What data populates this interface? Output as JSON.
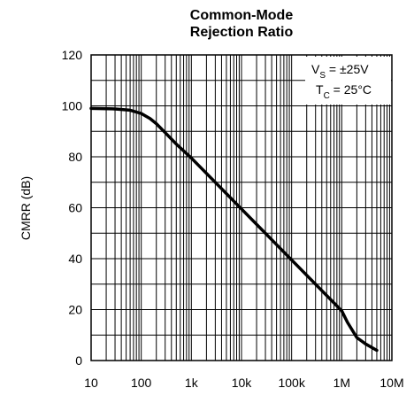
{
  "chart_data": {
    "type": "line",
    "title": [
      "Common-Mode",
      "Rejection Ratio"
    ],
    "y_label": "CMRR (dB)",
    "x": [
      10,
      30,
      60,
      100,
      150,
      200,
      300,
      500,
      1000,
      10000,
      100000,
      1000000,
      1300000,
      2000000,
      3000000,
      5000000
    ],
    "values": [
      99,
      98.8,
      98.3,
      97,
      95,
      93,
      89.5,
      85,
      79.5,
      59.5,
      39.5,
      19.5,
      15,
      9,
      6.5,
      4
    ],
    "color": "#000000",
    "xlog": true,
    "xlim": [
      10,
      10000000
    ],
    "xticks": [
      10,
      100,
      {
        "value": 1000,
        "label": "1k"
      },
      {
        "value": 10000,
        "label": "10k"
      },
      {
        "value": 100000,
        "label": "100k"
      },
      {
        "value": 1000000,
        "label": "1M"
      },
      {
        "value": 10000000,
        "label": "10M"
      }
    ],
    "ylim": [
      0,
      120
    ],
    "yticks": [
      0,
      20,
      40,
      60,
      80,
      100,
      120
    ],
    "y_minor_grid": [
      10,
      30,
      50,
      70,
      90,
      110
    ],
    "grid": true,
    "annotations": [
      {
        "main": "V",
        "sub": "S",
        "tail": " = ±25V"
      },
      {
        "main": "T",
        "sub": "C",
        "tail": " = 25°C"
      }
    ]
  }
}
